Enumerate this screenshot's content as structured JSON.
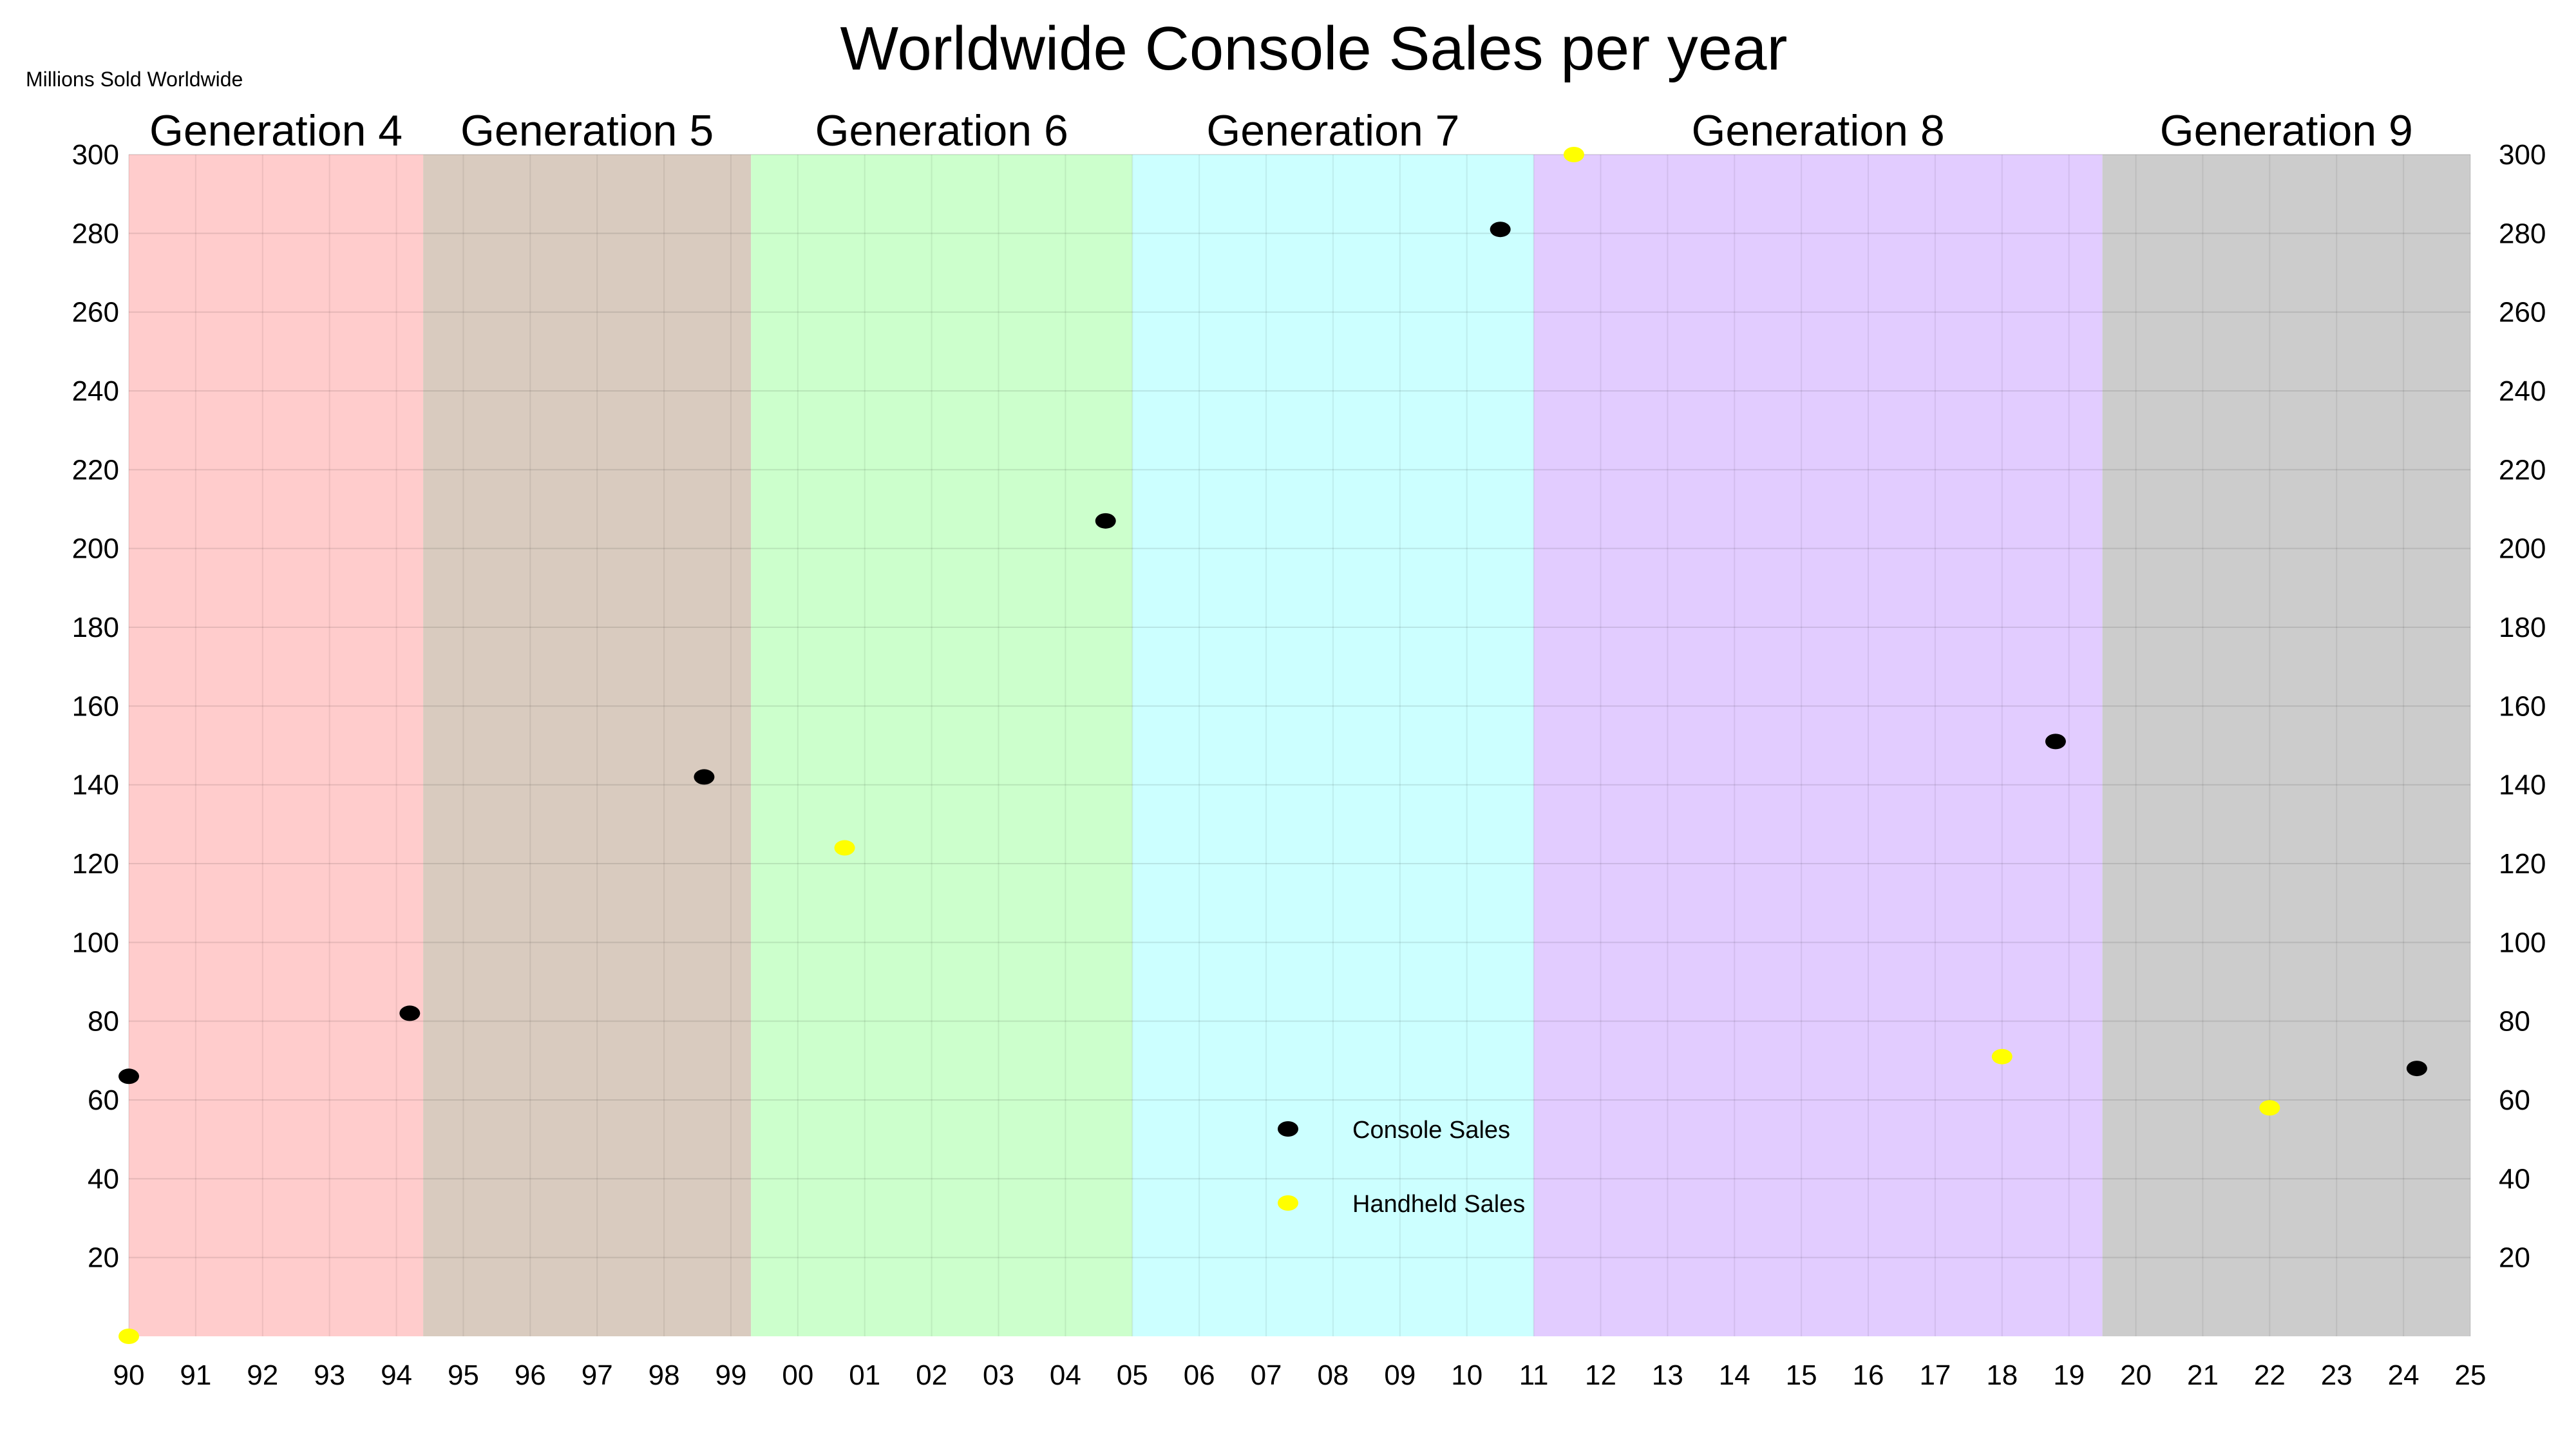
{
  "chart_data": {
    "type": "scatter",
    "title": "Worldwide Console Sales per year",
    "ylabel": "Millions Sold Worldwide",
    "xlabel": "",
    "xlim": [
      1990,
      2025
    ],
    "ylim": [
      0,
      300
    ],
    "y_ticks": [
      20,
      40,
      60,
      80,
      100,
      120,
      140,
      160,
      180,
      200,
      220,
      240,
      260,
      280,
      300
    ],
    "y_axis_both_sides": true,
    "x_ticks": [
      {
        "value": 1990,
        "label": "90"
      },
      {
        "value": 1991,
        "label": "91"
      },
      {
        "value": 1992,
        "label": "92"
      },
      {
        "value": 1993,
        "label": "93"
      },
      {
        "value": 1994,
        "label": "94"
      },
      {
        "value": 1995,
        "label": "95"
      },
      {
        "value": 1996,
        "label": "96"
      },
      {
        "value": 1997,
        "label": "97"
      },
      {
        "value": 1998,
        "label": "98"
      },
      {
        "value": 1999,
        "label": "99"
      },
      {
        "value": 2000,
        "label": "00"
      },
      {
        "value": 2001,
        "label": "01"
      },
      {
        "value": 2002,
        "label": "02"
      },
      {
        "value": 2003,
        "label": "03"
      },
      {
        "value": 2004,
        "label": "04"
      },
      {
        "value": 2005,
        "label": "05"
      },
      {
        "value": 2006,
        "label": "06"
      },
      {
        "value": 2007,
        "label": "07"
      },
      {
        "value": 2008,
        "label": "08"
      },
      {
        "value": 2009,
        "label": "09"
      },
      {
        "value": 2010,
        "label": "10"
      },
      {
        "value": 2011,
        "label": "11"
      },
      {
        "value": 2012,
        "label": "12"
      },
      {
        "value": 2013,
        "label": "13"
      },
      {
        "value": 2014,
        "label": "14"
      },
      {
        "value": 2015,
        "label": "15"
      },
      {
        "value": 2016,
        "label": "16"
      },
      {
        "value": 2017,
        "label": "17"
      },
      {
        "value": 2018,
        "label": "18"
      },
      {
        "value": 2019,
        "label": "19"
      },
      {
        "value": 2020,
        "label": "20"
      },
      {
        "value": 2021,
        "label": "21"
      },
      {
        "value": 2022,
        "label": "22"
      },
      {
        "value": 2023,
        "label": "23"
      },
      {
        "value": 2024,
        "label": "24"
      },
      {
        "value": 2025,
        "label": "25"
      }
    ],
    "grid": true,
    "legend_position": "bottom-center",
    "generations": [
      {
        "label": "Generation 4",
        "start": 1990,
        "end": 1994.4,
        "color": "#ffcccc"
      },
      {
        "label": "Generation 5",
        "start": 1994.4,
        "end": 1999.3,
        "color": "#d9cbbf"
      },
      {
        "label": "Generation 6",
        "start": 1999.3,
        "end": 2005.0,
        "color": "#ccffcc"
      },
      {
        "label": "Generation 7",
        "start": 2005.0,
        "end": 2011.0,
        "color": "#ccffff"
      },
      {
        "label": "Generation 8",
        "start": 2011.0,
        "end": 2019.5,
        "color": "#e2ccff"
      },
      {
        "label": "Generation 9",
        "start": 2019.5,
        "end": 2025.0,
        "color": "#cccccc"
      }
    ],
    "series": [
      {
        "name": "Console Sales",
        "color": "#000000",
        "points": [
          {
            "x": 1990.0,
            "y": 66
          },
          {
            "x": 1994.2,
            "y": 82
          },
          {
            "x": 1998.6,
            "y": 142
          },
          {
            "x": 2004.6,
            "y": 207
          },
          {
            "x": 2010.5,
            "y": 281
          },
          {
            "x": 2018.8,
            "y": 151
          },
          {
            "x": 2024.2,
            "y": 68
          }
        ]
      },
      {
        "name": "Handheld Sales",
        "color": "#ffff00",
        "points": [
          {
            "x": 1990.0,
            "y": 0
          },
          {
            "x": 2000.7,
            "y": 124
          },
          {
            "x": 2011.6,
            "y": 300
          },
          {
            "x": 2018.0,
            "y": 71
          },
          {
            "x": 2022.0,
            "y": 58
          }
        ]
      }
    ]
  }
}
